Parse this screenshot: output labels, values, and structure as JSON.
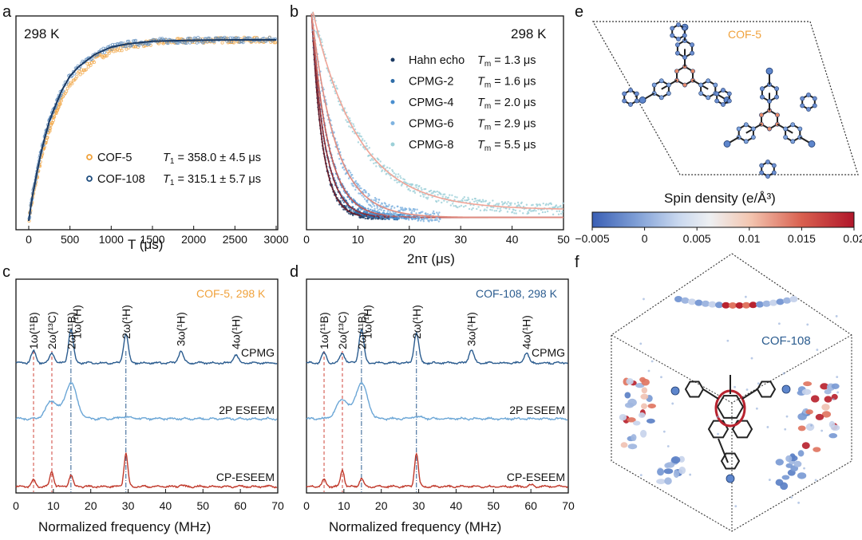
{
  "panels": {
    "a": {
      "label": "a",
      "temperature": "298 K",
      "xlabel": "T (μs)",
      "legend": [
        {
          "name": "COF-5",
          "symbol": "T",
          "sub": "1",
          "value": " = 358.0 ± 4.5 μs"
        },
        {
          "name": "COF-108",
          "symbol": "T",
          "sub": "1",
          "value": " = 315.1 ± 5.7 μs"
        }
      ]
    },
    "b": {
      "label": "b",
      "temperature": "298 K",
      "xlabel": "2nτ (μs)",
      "legend": [
        {
          "name": "Hahn echo",
          "symbol": "T",
          "sub": "m",
          "value": " = 1.3 μs"
        },
        {
          "name": "CPMG-2",
          "symbol": "T",
          "sub": "m",
          "value": " = 1.6 μs"
        },
        {
          "name": "CPMG-4",
          "symbol": "T",
          "sub": "m",
          "value": " = 2.0 μs"
        },
        {
          "name": "CPMG-6",
          "symbol": "T",
          "sub": "m",
          "value": " = 2.9 μs"
        },
        {
          "name": "CPMG-8",
          "symbol": "T",
          "sub": "m",
          "value": " = 5.5 μs"
        }
      ]
    },
    "c": {
      "label": "c",
      "corner_label": "COF-5, 298 K",
      "xlabel": "Normalized frequency (MHz)",
      "peak_labels": [
        "1ω(¹¹B)",
        "2ω(¹³C)",
        "2ω(¹¹B)",
        "1ω(¹H)",
        "2ω(¹H)",
        "3ω(¹H)",
        "4ω(¹H)"
      ],
      "trace_labels": [
        "CPMG",
        "2P ESEEM",
        "CP-ESEEM"
      ]
    },
    "d": {
      "label": "d",
      "corner_label": "COF-108, 298 K",
      "xlabel": "Normalized frequency (MHz)",
      "peak_labels": [
        "1ω(¹¹B)",
        "2ω(¹³C)",
        "2ω(¹¹B)",
        "1ω(¹H)",
        "2ω(¹H)",
        "3ω(¹H)",
        "4ω(¹H)"
      ],
      "trace_labels": [
        "CPMG",
        "2P ESEEM",
        "CP-ESEEM"
      ]
    },
    "e": {
      "label": "e",
      "structure_label": "COF-5",
      "colorbar_title": "Spin density (e/Å³)",
      "colorbar_ticks": [
        "−0.005",
        "0",
        "0.005",
        "0.01",
        "0.015",
        "0.02"
      ]
    },
    "f": {
      "label": "f",
      "structure_label": "COF-108"
    }
  },
  "colors": {
    "cof5_orange": "#f0a23c",
    "cof108_blue": "#1f4e7f",
    "hahn": "#1b3a63",
    "cpmg2": "#2f6da8",
    "cpmg4": "#4a8fcf",
    "cpmg6": "#7fb3e0",
    "cpmg8": "#9cd0d8",
    "fit_dark": "#7a1f2b",
    "fit_light": "#f0a598",
    "cpmg_trace": "#2b5c8f",
    "eseem_trace": "#6ba6d6",
    "cpeseem_trace": "#c0392b"
  },
  "chart_data": [
    {
      "panel": "a",
      "type": "scatter",
      "title": "",
      "xlabel": "T (μs)",
      "ylabel": "",
      "xlim": [
        0,
        3000
      ],
      "xticks": [
        0,
        500,
        1000,
        1500,
        2000,
        2500,
        3000
      ],
      "series": [
        {
          "name": "COF-5",
          "model": "saturation recovery",
          "T1_us": 358.0,
          "T1_err_us": 4.5,
          "color": "#f0a23c"
        },
        {
          "name": "COF-108",
          "model": "saturation recovery",
          "T1_us": 315.1,
          "T1_err_us": 5.7,
          "color": "#1f4e7f"
        }
      ],
      "curve_x": [
        0,
        10,
        25,
        50,
        75,
        100,
        150,
        200,
        250,
        300,
        400,
        500,
        600,
        800,
        1000,
        1200,
        1500,
        2000,
        2500,
        3000
      ],
      "curve_y_cof5": [
        0.0,
        0.03,
        0.07,
        0.13,
        0.19,
        0.24,
        0.34,
        0.43,
        0.5,
        0.57,
        0.67,
        0.75,
        0.81,
        0.89,
        0.94,
        0.965,
        0.985,
        0.996,
        0.999,
        1.0
      ],
      "curve_y_cof108": [
        0.0,
        0.03,
        0.08,
        0.15,
        0.21,
        0.27,
        0.38,
        0.47,
        0.55,
        0.61,
        0.72,
        0.8,
        0.85,
        0.92,
        0.96,
        0.978,
        0.992,
        0.998,
        1.0,
        1.0
      ]
    },
    {
      "panel": "b",
      "type": "scatter",
      "title": "",
      "xlabel": "2nτ (μs)",
      "ylabel": "",
      "xlim": [
        0,
        50
      ],
      "xticks": [
        0,
        10,
        20,
        30,
        40,
        50
      ],
      "series": [
        {
          "name": "Hahn echo",
          "Tm_us": 1.3,
          "x_max": 15,
          "color": "#1b3a63"
        },
        {
          "name": "CPMG-2",
          "Tm_us": 1.6,
          "x_max": 18,
          "color": "#2f6da8"
        },
        {
          "name": "CPMG-4",
          "Tm_us": 2.0,
          "x_max": 22,
          "color": "#4a8fcf"
        },
        {
          "name": "CPMG-6",
          "Tm_us": 2.9,
          "x_max": 26,
          "color": "#7fb3e0"
        },
        {
          "name": "CPMG-8",
          "Tm_us": 5.5,
          "x_max": 50,
          "color": "#9cd0d8"
        }
      ]
    },
    {
      "panel": "c",
      "type": "line",
      "title": "",
      "xlabel": "Normalized frequency (MHz)",
      "ylabel": "",
      "xlim": [
        0,
        70
      ],
      "xticks": [
        0,
        10,
        20,
        30,
        40,
        50,
        60,
        70
      ],
      "marker_lines": [
        {
          "x": 4.7,
          "style": "red-dash"
        },
        {
          "x": 9.6,
          "style": "red-dash"
        },
        {
          "x": 14.7,
          "style": "blue-dashdot"
        },
        {
          "x": 29.4,
          "style": "blue-dashdot"
        }
      ],
      "traces": [
        {
          "name": "CPMG",
          "peaks": [
            [
              4.7,
              0.35
            ],
            [
              9.6,
              0.3
            ],
            [
              14.7,
              1.0
            ],
            [
              29.4,
              0.85
            ],
            [
              44.1,
              0.35
            ],
            [
              58.8,
              0.25
            ]
          ]
        },
        {
          "name": "2P ESEEM",
          "peaks": [
            [
              9.6,
              0.5
            ],
            [
              14.7,
              1.0
            ],
            [
              29.4,
              0.05
            ]
          ]
        },
        {
          "name": "CP-ESEEM",
          "peaks": [
            [
              4.7,
              0.2
            ],
            [
              9.6,
              0.45
            ],
            [
              14.7,
              0.35
            ],
            [
              29.4,
              1.0
            ],
            [
              44.1,
              0.05
            ]
          ]
        }
      ]
    },
    {
      "panel": "d",
      "type": "line",
      "title": "",
      "xlabel": "Normalized frequency (MHz)",
      "ylabel": "",
      "xlim": [
        0,
        70
      ],
      "xticks": [
        0,
        10,
        20,
        30,
        40,
        50,
        60,
        70
      ],
      "marker_lines": [
        {
          "x": 4.7,
          "style": "red-dash"
        },
        {
          "x": 9.6,
          "style": "red-dash"
        },
        {
          "x": 14.7,
          "style": "blue-dashdot"
        },
        {
          "x": 29.4,
          "style": "blue-dashdot"
        }
      ],
      "traces": [
        {
          "name": "CPMG",
          "peaks": [
            [
              4.7,
              0.3
            ],
            [
              9.6,
              0.3
            ],
            [
              14.7,
              1.0
            ],
            [
              29.4,
              0.9
            ],
            [
              44.1,
              0.4
            ],
            [
              58.8,
              0.3
            ]
          ]
        },
        {
          "name": "2P ESEEM",
          "peaks": [
            [
              9.6,
              0.55
            ],
            [
              14.7,
              1.0
            ],
            [
              29.4,
              0.05
            ]
          ]
        },
        {
          "name": "CP-ESEEM",
          "peaks": [
            [
              4.7,
              0.2
            ],
            [
              9.6,
              0.5
            ],
            [
              14.7,
              0.25
            ],
            [
              29.4,
              1.0
            ],
            [
              60,
              0.05
            ]
          ]
        }
      ]
    }
  ]
}
